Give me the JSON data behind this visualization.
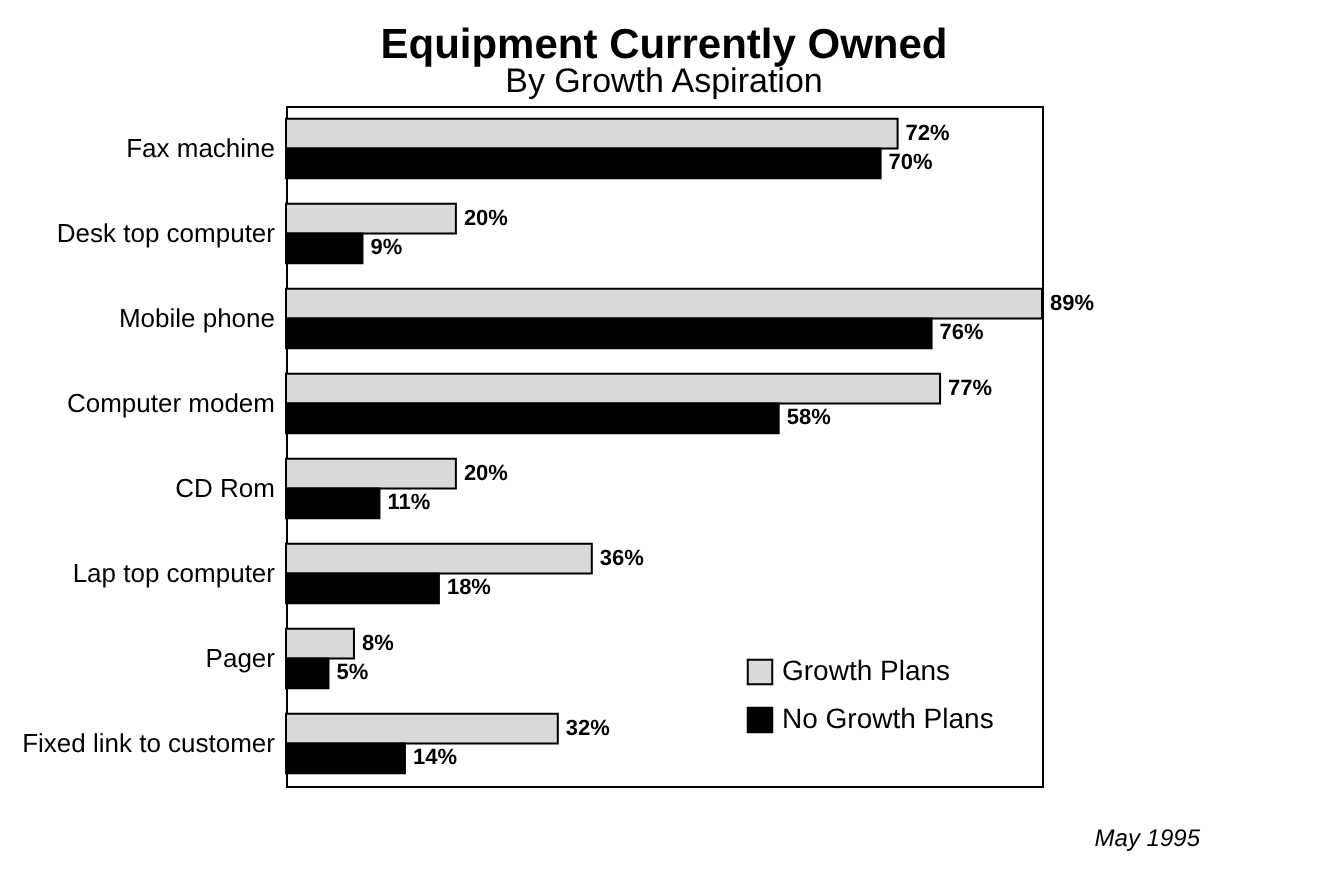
{
  "chart_data": {
    "type": "bar",
    "orientation": "horizontal",
    "title": "Equipment Currently Owned",
    "subtitle": "By Growth Aspiration",
    "categories": [
      "Fax machine",
      "Desk top computer",
      "Mobile phone",
      "Computer modem",
      "CD Rom",
      "Lap top computer",
      "Pager",
      "Fixed link to customer"
    ],
    "series": [
      {
        "name": "Growth Plans",
        "color": "#d9d9d9",
        "values": [
          72,
          20,
          89,
          77,
          20,
          36,
          8,
          32
        ],
        "value_labels": [
          "72%",
          "20%",
          "89%",
          "77%",
          "20%",
          "36%",
          "8%",
          "32%"
        ]
      },
      {
        "name": "No Growth Plans",
        "color": "#000000",
        "values": [
          70,
          9,
          76,
          58,
          11,
          18,
          5,
          14
        ],
        "value_labels": [
          "70%",
          "9%",
          "76%",
          "58%",
          "11%",
          "18%",
          "5%",
          "14%"
        ]
      }
    ],
    "legend": "bottom right",
    "annotations": [
      "May 1995"
    ]
  }
}
